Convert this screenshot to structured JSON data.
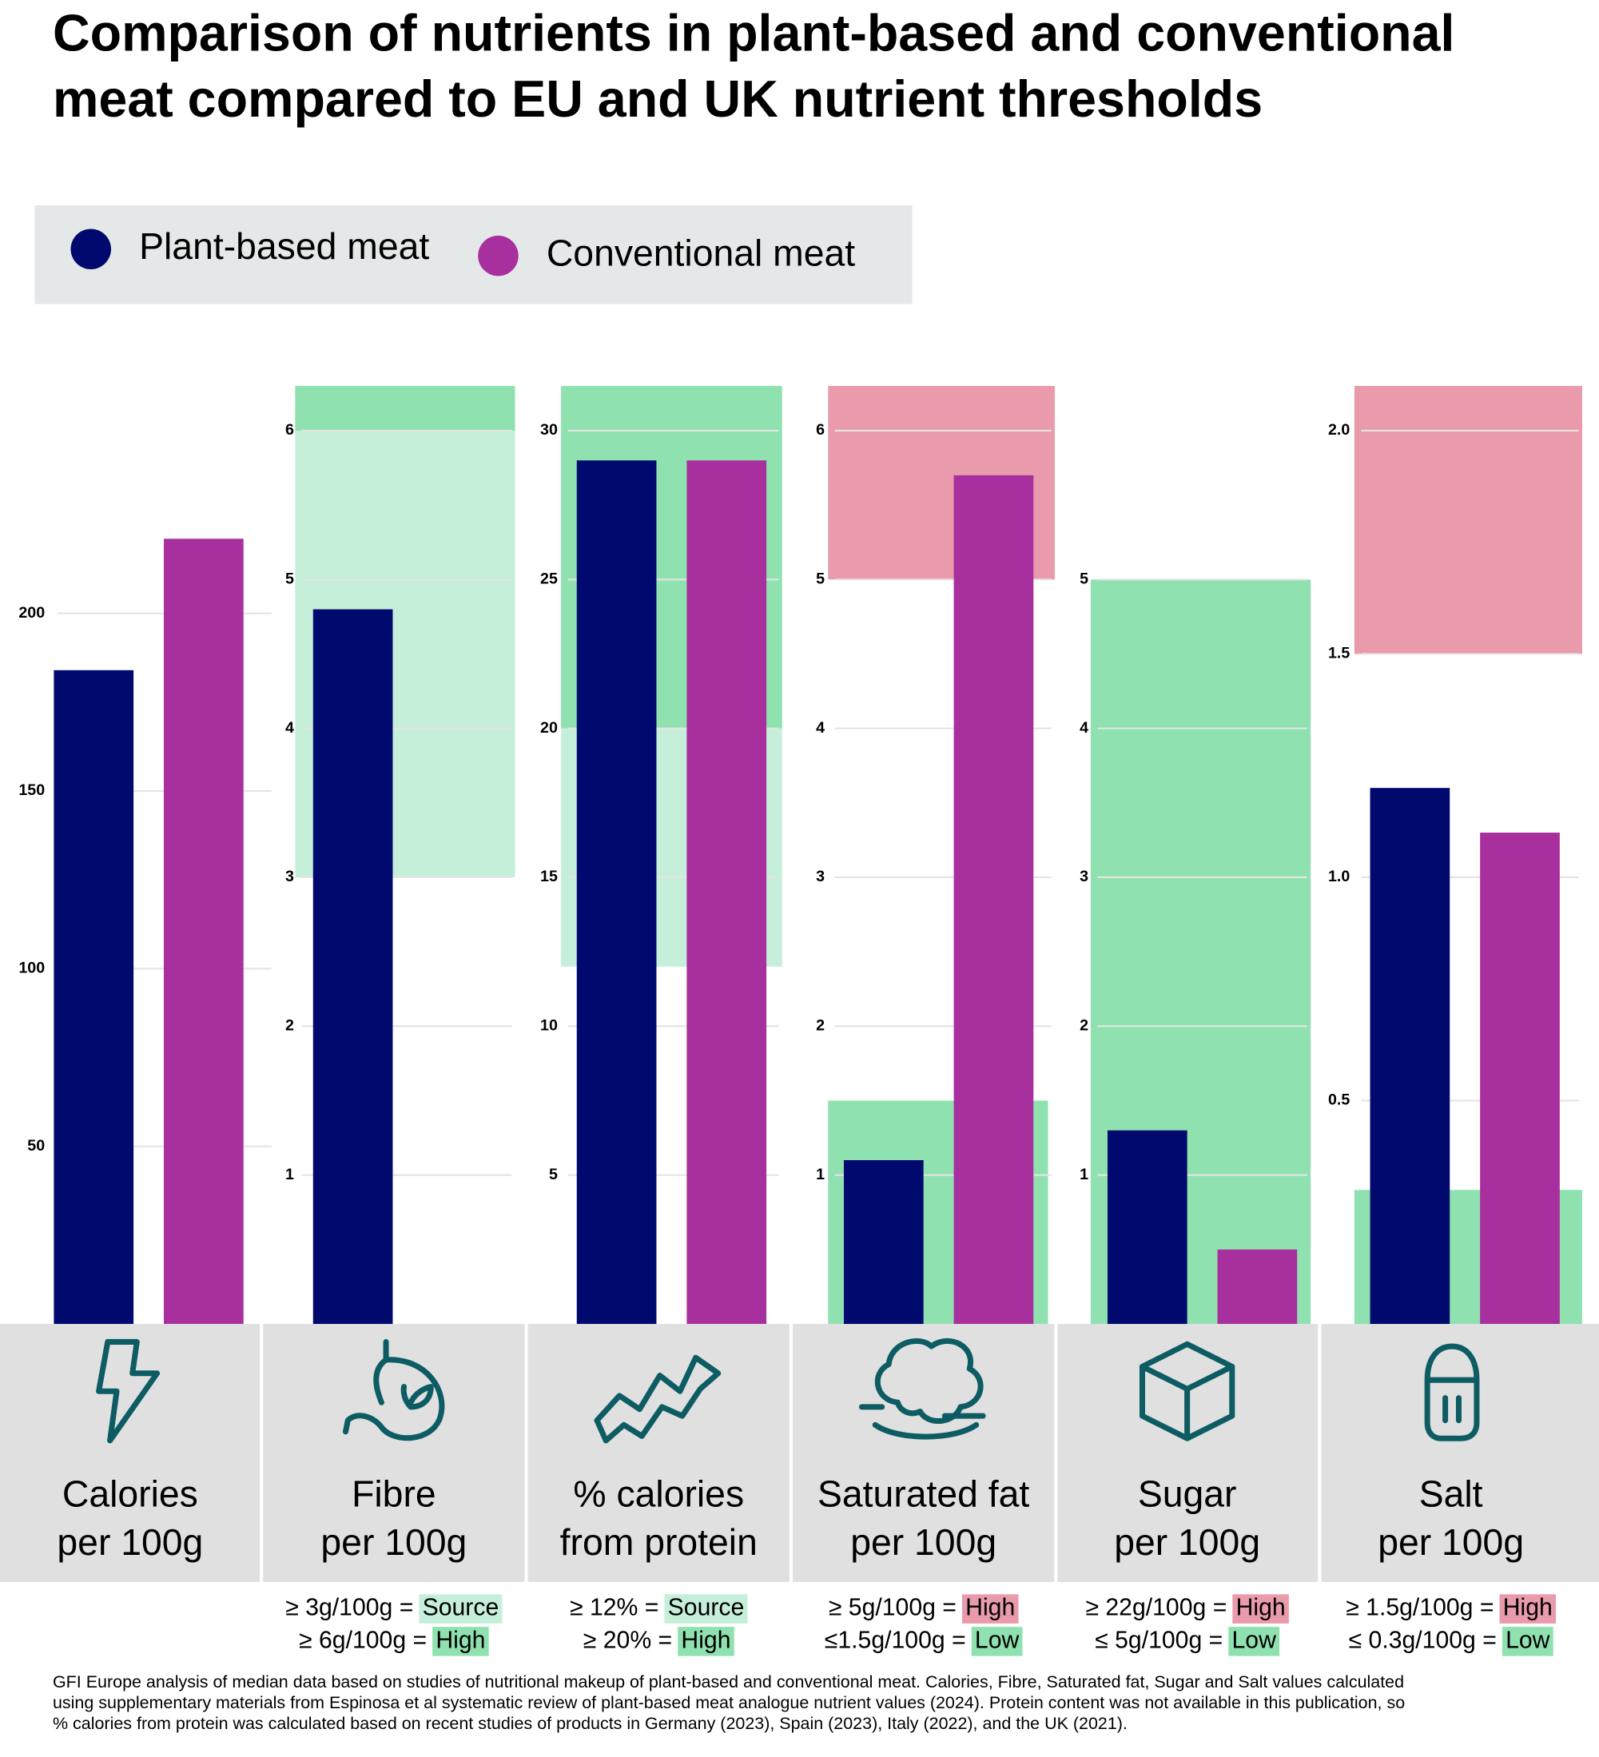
{
  "title": [
    "Comparison of nutrients in plant-based and conventional",
    "meat compared to EU and UK nutrient thresholds"
  ],
  "legend": [
    {
      "name": "Plant-based meat",
      "color": "#000a6e"
    },
    {
      "name": "Conventional meat",
      "color": "#a8309e"
    }
  ],
  "chart_data": [
    {
      "type": "bar",
      "label": [
        "Calories",
        "per 100g"
      ],
      "values": [
        184,
        221
      ],
      "ylim": [
        0,
        264
      ],
      "yticks": [
        50,
        100,
        150,
        200
      ],
      "grid": true,
      "bands": [],
      "criteria": []
    },
    {
      "type": "bar",
      "label": [
        "Fibre",
        "per 100g"
      ],
      "values": [
        4.8,
        0
      ],
      "ylim": [
        0,
        6.3
      ],
      "yticks": [
        1,
        2,
        3,
        4,
        5,
        6
      ],
      "grid": true,
      "bands": [
        {
          "from": 3,
          "to": 6,
          "color": "#c6efda"
        },
        {
          "from": 6,
          "to": 6.3,
          "color": "#8fe2b0"
        }
      ],
      "criteria": [
        {
          "text": "≥ 3g/100g =",
          "badge": "Source",
          "badge_color": "#c6efda"
        },
        {
          "text": "≥ 6g/100g =",
          "badge": "High",
          "badge_color": "#8fe2b0"
        }
      ]
    },
    {
      "type": "bar",
      "label": [
        "% calories",
        "from protein"
      ],
      "values": [
        29,
        29
      ],
      "ylim": [
        0,
        31.5
      ],
      "yticks": [
        5,
        10,
        15,
        20,
        25,
        30
      ],
      "grid": true,
      "bands": [
        {
          "from": 12,
          "to": 20,
          "color": "#c6efda"
        },
        {
          "from": 20,
          "to": 31.5,
          "color": "#8fe2b0"
        }
      ],
      "criteria": [
        {
          "text": "≥ 12% =",
          "badge": "Source",
          "badge_color": "#c6efda"
        },
        {
          "text": "≥ 20% =",
          "badge": "High",
          "badge_color": "#8fe2b0"
        }
      ]
    },
    {
      "type": "bar",
      "label": [
        "Saturated fat",
        "per 100g"
      ],
      "values": [
        1.1,
        5.7
      ],
      "ylim": [
        0,
        6.3
      ],
      "yticks": [
        1,
        2,
        3,
        4,
        5,
        6
      ],
      "grid": true,
      "bands": [
        {
          "from": 5,
          "to": 6.3,
          "color": "#e99aab"
        },
        {
          "from": 0,
          "to": 1.5,
          "color": "#8fe2b0"
        }
      ],
      "criteria": [
        {
          "text": "≥ 5g/100g =",
          "badge": "High",
          "badge_color": "#e99aab"
        },
        {
          "text": "≤1.5g/100g =",
          "badge": "Low",
          "badge_color": "#8fe2b0"
        }
      ]
    },
    {
      "type": "bar",
      "label": [
        "Sugar",
        "per 100g"
      ],
      "values": [
        1.3,
        0.5
      ],
      "ylim": [
        0,
        6.3
      ],
      "yticks": [
        1,
        2,
        3,
        4,
        5
      ],
      "grid": true,
      "bands": [
        {
          "from": 0,
          "to": 5,
          "color": "#8fe2b0"
        }
      ],
      "criteria": [
        {
          "text": "≥ 22g/100g =",
          "badge": "High",
          "badge_color": "#e99aab"
        },
        {
          "text": "≤ 5g/100g =",
          "badge": "Low",
          "badge_color": "#8fe2b0"
        }
      ]
    },
    {
      "type": "bar",
      "label": [
        "Salt",
        "per 100g"
      ],
      "values": [
        1.2,
        1.1
      ],
      "ylim": [
        0,
        2.1
      ],
      "yticks": [
        {
          "value": 0.5,
          "label": "0.5"
        },
        {
          "value": 1,
          "label": "1.0"
        },
        {
          "value": 1.5,
          "label": "1.5"
        },
        {
          "value": 2,
          "label": "2.0"
        }
      ],
      "grid": true,
      "bands": [
        {
          "from": 1.5,
          "to": 2.1,
          "color": "#e99aab"
        },
        {
          "from": 0,
          "to": 0.3,
          "color": "#8fe2b0"
        }
      ],
      "criteria": [
        {
          "text": "≥ 1.5g/100g =",
          "badge": "High",
          "badge_color": "#e99aab"
        },
        {
          "text": "≤ 0.3g/100g =",
          "badge": "Low",
          "badge_color": "#8fe2b0"
        }
      ]
    }
  ],
  "footnote": [
    "GFI Europe analysis of median data based on studies of nutritional makeup of plant-based and conventional meat. Calories, Fibre, Saturated fat, Sugar and Salt values calculated",
    "using supplementary materials from Espinosa et al systematic review of plant-based meat analogue nutrient values (2024). Protein content was not available in this publication, so",
    "% calories from protein was calculated based on recent studies of products in Germany (2023), Spain (2023), Italy (2022), and the UK (2021)."
  ]
}
